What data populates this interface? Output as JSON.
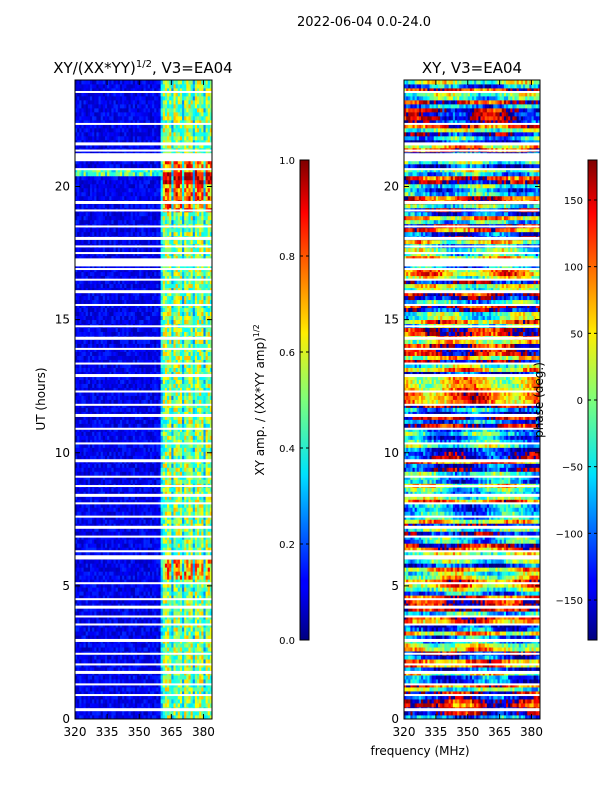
{
  "figure": {
    "suptitle": "2022-06-04 0.0-24.0",
    "xlabel_shared": "frequency (MHz)"
  },
  "chart_data": [
    {
      "type": "heatmap",
      "title": "XY/(XX*YY)^1/2, V3=EA04",
      "title_main": "XY/(XX*YY)",
      "title_exp": "1/2",
      "title_suffix": ", V3=EA04",
      "xlabel": "frequency (MHz)",
      "ylabel": "UT (hours)",
      "xlim": [
        320,
        384
      ],
      "ylim": [
        0,
        24
      ],
      "xticks": [
        320,
        335,
        350,
        365,
        380
      ],
      "yticks": [
        0,
        5,
        10,
        15,
        20
      ],
      "colorbar": {
        "label": "XY amp. / (XX*YY amp)^1/2",
        "label_main": "XY amp. / (XX*YY amp)",
        "label_exp": "1/2",
        "range": [
          0.0,
          1.0
        ],
        "ticks": [
          "0.0",
          "0.2",
          "0.4",
          "0.6",
          "0.8",
          "1.0"
        ],
        "colormap": "jet"
      },
      "notes": "Mostly low amplitude (~0.05-0.15) below 360 MHz; high amplitude bands (0.4-0.9) between ~360 and 383 MHz; flagged (blank) horizontal rows at many times."
    },
    {
      "type": "heatmap",
      "title": "XY, V3=EA04",
      "xlabel": "frequency (MHz)",
      "ylabel": "",
      "xlim": [
        320,
        384
      ],
      "ylim": [
        0,
        24
      ],
      "xticks": [
        320,
        335,
        350,
        365,
        380
      ],
      "yticks": [
        0,
        5,
        10,
        15,
        20
      ],
      "colorbar": {
        "label": "phase (deg.)",
        "range": [
          -180,
          180
        ],
        "ticks": [
          "−150",
          "−100",
          "−50",
          "0",
          "50",
          "100",
          "150"
        ],
        "tick_values": [
          -150,
          -100,
          -50,
          0,
          50,
          100,
          150
        ],
        "colormap": "jet"
      },
      "notes": "Phase varies over the full range (-180 to 180 deg) across time and frequency; flagged rows shown blank."
    }
  ],
  "colors": {
    "jet_low": "#00007f",
    "jet_high": "#7f0000",
    "background": "#ffffff"
  }
}
